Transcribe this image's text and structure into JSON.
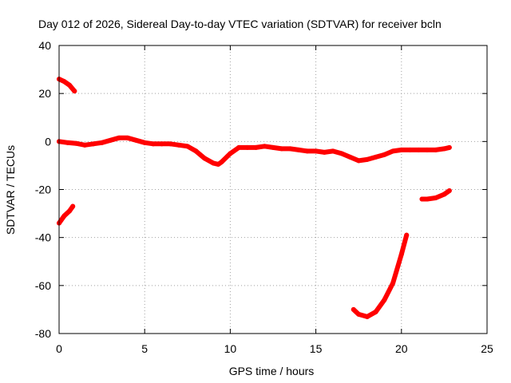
{
  "chart_data": {
    "type": "scatter",
    "title": "Day 012 of 2026, Sidereal Day-to-day VTEC variation (SDTVAR) for receiver bcln",
    "xlabel": "GPS time / hours",
    "ylabel": "SDTVAR / TECUs",
    "xlim": [
      0,
      25
    ],
    "ylim": [
      -80,
      40
    ],
    "xticks": [
      0,
      5,
      10,
      15,
      20,
      25
    ],
    "yticks": [
      -80,
      -60,
      -40,
      -20,
      0,
      20,
      40
    ],
    "grid": true,
    "series_color": "#ff0000",
    "series": [
      {
        "name": "main-trace",
        "x": [
          0,
          0.5,
          1,
          1.5,
          2,
          2.5,
          3,
          3.5,
          4,
          4.5,
          5,
          5.5,
          6,
          6.5,
          7,
          7.5,
          8,
          8.5,
          9,
          9.3,
          9.5,
          10,
          10.5,
          11,
          11.5,
          12,
          12.5,
          13,
          13.5,
          14,
          14.5,
          15,
          15.5,
          16,
          16.5,
          17,
          17.5,
          18,
          18.5,
          19,
          19.5,
          20,
          20.5,
          21,
          21.5,
          22,
          22.5,
          22.8
        ],
        "y": [
          0,
          -0.5,
          -0.8,
          -1.5,
          -1,
          -0.5,
          0.5,
          1.5,
          1.5,
          0.5,
          -0.5,
          -1,
          -1,
          -1,
          -1.5,
          -2,
          -4,
          -7,
          -9,
          -9.5,
          -8.5,
          -5,
          -2.5,
          -2.5,
          -2.5,
          -2,
          -2.5,
          -3,
          -3,
          -3.5,
          -4,
          -4,
          -4.5,
          -4,
          -5,
          -6.5,
          -8,
          -7.5,
          -6.5,
          -5.5,
          -4,
          -3.5,
          -3.5,
          -3.5,
          -3.5,
          -3.5,
          -3,
          -2.5
        ]
      },
      {
        "name": "start-high-arc",
        "x": [
          0,
          0.3,
          0.6,
          0.9
        ],
        "y": [
          26,
          25,
          23.5,
          21
        ]
      },
      {
        "name": "start-low-arc",
        "x": [
          0,
          0.3,
          0.6,
          0.8
        ],
        "y": [
          -34,
          -31,
          -29,
          -27
        ]
      },
      {
        "name": "deep-arc",
        "x": [
          17.2,
          17.5,
          18,
          18.5,
          19,
          19.5,
          20,
          20.3
        ],
        "y": [
          -70,
          -72,
          -73,
          -71,
          -66,
          -59,
          -47,
          -39
        ]
      },
      {
        "name": "late-arc",
        "x": [
          21.2,
          21.5,
          22,
          22.5,
          22.8
        ],
        "y": [
          -24,
          -24,
          -23.5,
          -22,
          -20.5
        ]
      }
    ]
  }
}
